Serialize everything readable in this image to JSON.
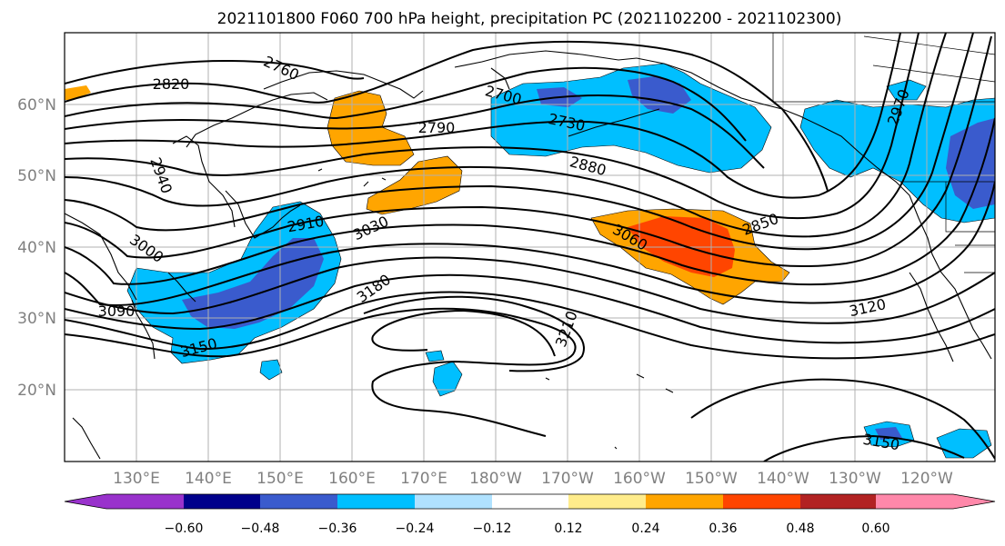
{
  "title": "2021101800 F060 700 hPa height, precipitation PC (2021102200 - 2021102300)",
  "lat_ticks": [
    "20°N",
    "30°N",
    "40°N",
    "50°N",
    "60°N"
  ],
  "lon_ticks": [
    "130°E",
    "140°E",
    "150°E",
    "160°E",
    "170°E",
    "180°W",
    "170°W",
    "160°W",
    "150°W",
    "140°W",
    "130°W",
    "120°W"
  ],
  "colorbar": {
    "colors": [
      "#9932cc",
      "#00008b",
      "#3a5bcd",
      "#00bfff",
      "#b0e2ff",
      "#ffffff",
      "#ffec8b",
      "#ffa500",
      "#ff4500",
      "#b22222",
      "#ff88aa"
    ],
    "tick_labels": [
      "−0.60",
      "−0.48",
      "−0.36",
      "−0.24",
      "−0.12",
      "0.12",
      "0.24",
      "0.36",
      "0.48",
      "0.60"
    ]
  },
  "contour_labels": [
    "2820",
    "2760",
    "2700",
    "2730",
    "2790",
    "2880",
    "2940",
    "2910",
    "3030",
    "3000",
    "3060",
    "2850",
    "2970",
    "3180",
    "3090",
    "3150",
    "3210",
    "3120",
    "3150"
  ]
}
